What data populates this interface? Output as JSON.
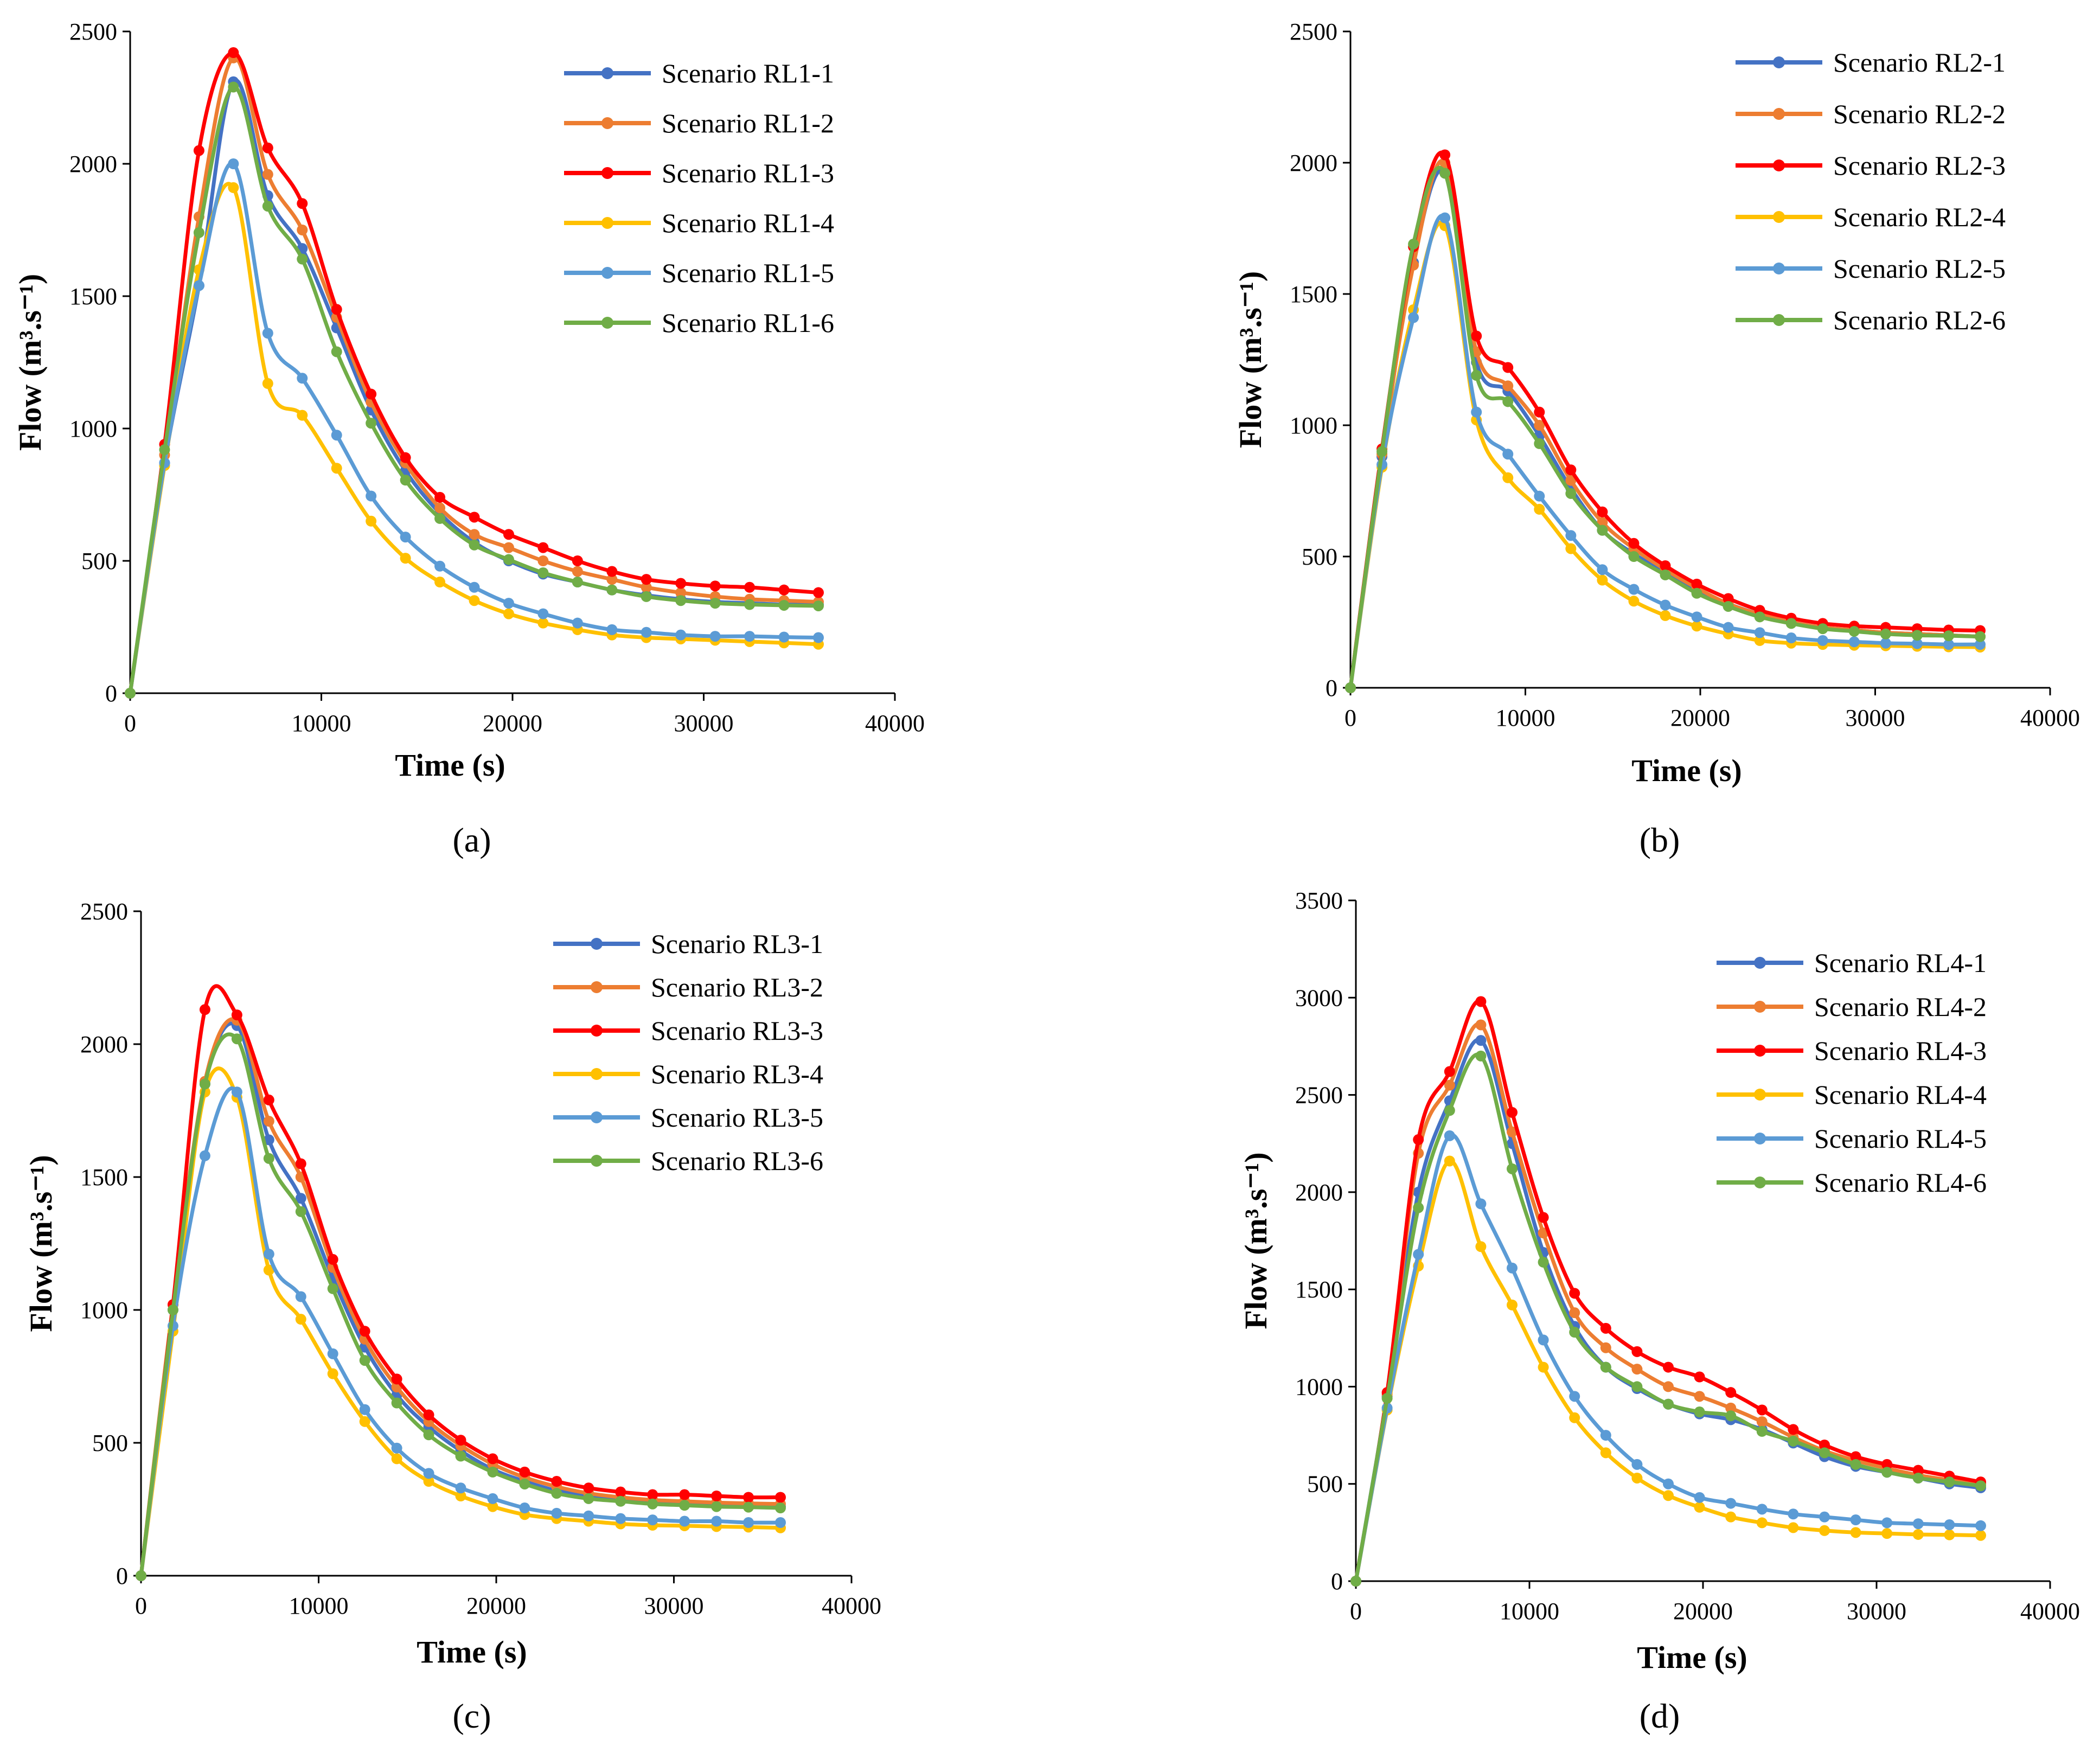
{
  "chart_data": [
    {
      "type": "line",
      "panel_label": "(a)",
      "xlabel": "Time (s)",
      "ylabel": "Flow (m³.s⁻¹)",
      "xlim": [
        0,
        40000
      ],
      "ylim": [
        0,
        2500
      ],
      "xticks": [
        0,
        10000,
        20000,
        30000,
        40000
      ],
      "yticks": [
        0,
        500,
        1000,
        1500,
        2000,
        2500
      ],
      "legend_position": "top-right",
      "x": [
        0,
        1800,
        3600,
        5400,
        7200,
        9000,
        10800,
        12600,
        14400,
        16200,
        18000,
        19800,
        21600,
        23400,
        25200,
        27000,
        28800,
        30600,
        32400,
        34200,
        36000
      ],
      "series": [
        {
          "name": "Scenario RL1-1",
          "color": "#4472C4",
          "values": [
            0,
            870,
            1540,
            2310,
            1880,
            1680,
            1380,
            1070,
            840,
            680,
            570,
            500,
            450,
            420,
            390,
            370,
            355,
            345,
            340,
            335,
            335
          ]
        },
        {
          "name": "Scenario RL1-2",
          "color": "#ED7D31",
          "values": [
            0,
            900,
            1800,
            2400,
            1960,
            1750,
            1420,
            1100,
            870,
            700,
            600,
            550,
            500,
            460,
            430,
            400,
            380,
            365,
            355,
            350,
            345
          ]
        },
        {
          "name": "Scenario RL1-3",
          "color": "#FF0000",
          "values": [
            0,
            940,
            2050,
            2420,
            2060,
            1850,
            1450,
            1130,
            890,
            740,
            665,
            600,
            550,
            500,
            460,
            430,
            415,
            405,
            400,
            390,
            380
          ]
        },
        {
          "name": "Scenario RL1-4",
          "color": "#FFC000",
          "values": [
            0,
            860,
            1600,
            1910,
            1170,
            1050,
            850,
            650,
            510,
            420,
            350,
            300,
            265,
            240,
            220,
            210,
            205,
            200,
            195,
            190,
            185
          ]
        },
        {
          "name": "Scenario RL1-5",
          "color": "#5B9BD5",
          "values": [
            0,
            870,
            1540,
            2000,
            1360,
            1190,
            975,
            745,
            590,
            480,
            400,
            340,
            300,
            265,
            240,
            230,
            220,
            215,
            215,
            212,
            210
          ]
        },
        {
          "name": "Scenario RL1-6",
          "color": "#70AD47",
          "values": [
            0,
            920,
            1740,
            2290,
            1840,
            1640,
            1290,
            1020,
            805,
            660,
            560,
            505,
            455,
            420,
            390,
            365,
            350,
            340,
            335,
            332,
            330
          ]
        }
      ]
    },
    {
      "type": "line",
      "panel_label": "(b)",
      "xlabel": "Time (s)",
      "ylabel": "Flow (m³.s⁻¹)",
      "xlim": [
        0,
        40000
      ],
      "ylim": [
        0,
        2500
      ],
      "xticks": [
        0,
        10000,
        20000,
        30000,
        40000
      ],
      "yticks": [
        0,
        500,
        1000,
        1500,
        2000,
        2500
      ],
      "legend_position": "top-right",
      "x": [
        0,
        1800,
        3600,
        5400,
        7200,
        9000,
        10800,
        12600,
        14400,
        16200,
        18000,
        19800,
        21600,
        23400,
        25200,
        27000,
        28800,
        30600,
        32400,
        34200,
        36000
      ],
      "series": [
        {
          "name": "Scenario RL2-1",
          "color": "#4472C4",
          "values": [
            0,
            880,
            1620,
            1960,
            1240,
            1130,
            960,
            760,
            600,
            510,
            440,
            370,
            320,
            280,
            250,
            230,
            220,
            210,
            205,
            200,
            195
          ]
        },
        {
          "name": "Scenario RL2-2",
          "color": "#ED7D31",
          "values": [
            0,
            890,
            1610,
            2000,
            1280,
            1150,
            1000,
            790,
            630,
            530,
            450,
            380,
            320,
            280,
            250,
            230,
            220,
            210,
            205,
            200,
            195
          ]
        },
        {
          "name": "Scenario RL2-3",
          "color": "#FF0000",
          "values": [
            0,
            910,
            1680,
            2030,
            1340,
            1220,
            1050,
            830,
            670,
            550,
            465,
            395,
            340,
            295,
            265,
            245,
            235,
            230,
            225,
            220,
            218
          ]
        },
        {
          "name": "Scenario RL2-4",
          "color": "#FFC000",
          "values": [
            0,
            840,
            1440,
            1760,
            1020,
            800,
            680,
            530,
            410,
            330,
            275,
            235,
            205,
            180,
            170,
            165,
            162,
            160,
            158,
            156,
            155
          ]
        },
        {
          "name": "Scenario RL2-5",
          "color": "#5B9BD5",
          "values": [
            0,
            850,
            1410,
            1790,
            1050,
            890,
            730,
            580,
            450,
            375,
            315,
            270,
            230,
            210,
            190,
            180,
            175,
            170,
            168,
            165,
            165
          ]
        },
        {
          "name": "Scenario RL2-6",
          "color": "#70AD47",
          "values": [
            0,
            900,
            1690,
            1960,
            1190,
            1090,
            930,
            740,
            600,
            500,
            430,
            360,
            310,
            270,
            245,
            225,
            215,
            205,
            200,
            198,
            195
          ]
        }
      ]
    },
    {
      "type": "line",
      "panel_label": "(c)",
      "xlabel": "Time (s)",
      "ylabel": "Flow (m³.s⁻¹)",
      "xlim": [
        0,
        40000
      ],
      "ylim": [
        0,
        2500
      ],
      "xticks": [
        0,
        10000,
        20000,
        30000,
        40000
      ],
      "yticks": [
        0,
        500,
        1000,
        1500,
        2000,
        2500
      ],
      "legend_position": "top-right",
      "x": [
        0,
        1800,
        3600,
        5400,
        7200,
        9000,
        10800,
        12600,
        14400,
        16200,
        18000,
        19800,
        21600,
        23400,
        25200,
        27000,
        28800,
        30600,
        32400,
        34200,
        36000
      ],
      "series": [
        {
          "name": "Scenario RL3-1",
          "color": "#4472C4",
          "values": [
            0,
            1000,
            1850,
            2070,
            1640,
            1420,
            1120,
            860,
            680,
            560,
            470,
            400,
            355,
            320,
            300,
            285,
            275,
            270,
            265,
            262,
            260
          ]
        },
        {
          "name": "Scenario RL3-2",
          "color": "#ED7D31",
          "values": [
            0,
            1020,
            1860,
            2090,
            1710,
            1500,
            1160,
            890,
            710,
            580,
            490,
            420,
            370,
            335,
            310,
            295,
            285,
            280,
            275,
            272,
            270
          ]
        },
        {
          "name": "Scenario RL3-3",
          "color": "#FF0000",
          "values": [
            0,
            1020,
            2130,
            2110,
            1790,
            1550,
            1190,
            920,
            740,
            605,
            510,
            440,
            390,
            355,
            330,
            315,
            305,
            305,
            300,
            295,
            295
          ]
        },
        {
          "name": "Scenario RL3-4",
          "color": "#FFC000",
          "values": [
            0,
            920,
            1820,
            1800,
            1150,
            965,
            760,
            580,
            440,
            355,
            300,
            260,
            230,
            215,
            205,
            195,
            190,
            188,
            185,
            183,
            180
          ]
        },
        {
          "name": "Scenario RL3-5",
          "color": "#5B9BD5",
          "values": [
            0,
            940,
            1580,
            1820,
            1210,
            1050,
            835,
            625,
            480,
            385,
            330,
            290,
            255,
            235,
            225,
            215,
            210,
            205,
            205,
            200,
            200
          ]
        },
        {
          "name": "Scenario RL3-6",
          "color": "#70AD47",
          "values": [
            0,
            1000,
            1850,
            2020,
            1570,
            1370,
            1080,
            810,
            650,
            530,
            450,
            390,
            345,
            310,
            290,
            280,
            270,
            265,
            260,
            258,
            255
          ]
        }
      ]
    },
    {
      "type": "line",
      "panel_label": "(d)",
      "xlabel": "Time (s)",
      "ylabel": "Flow (m³.s⁻¹)",
      "xlim": [
        0,
        40000
      ],
      "ylim": [
        0,
        3500
      ],
      "xticks": [
        0,
        10000,
        20000,
        30000,
        40000
      ],
      "yticks": [
        0,
        500,
        1000,
        1500,
        2000,
        2500,
        3000,
        3500
      ],
      "legend_position": "top-right",
      "x": [
        0,
        1800,
        3600,
        5400,
        7200,
        9000,
        10800,
        12600,
        14400,
        16200,
        18000,
        19800,
        21600,
        23400,
        25200,
        27000,
        28800,
        30600,
        32400,
        34200,
        36000
      ],
      "series": [
        {
          "name": "Scenario RL4-1",
          "color": "#4472C4",
          "values": [
            0,
            950,
            2000,
            2470,
            2780,
            2250,
            1690,
            1310,
            1100,
            990,
            910,
            860,
            830,
            780,
            710,
            640,
            590,
            560,
            530,
            500,
            480
          ]
        },
        {
          "name": "Scenario RL4-2",
          "color": "#ED7D31",
          "values": [
            0,
            960,
            2200,
            2550,
            2860,
            2310,
            1790,
            1380,
            1200,
            1090,
            1000,
            950,
            890,
            820,
            740,
            670,
            620,
            580,
            545,
            520,
            500
          ]
        },
        {
          "name": "Scenario RL4-3",
          "color": "#FF0000",
          "values": [
            0,
            970,
            2270,
            2620,
            2980,
            2410,
            1870,
            1480,
            1300,
            1180,
            1100,
            1050,
            970,
            880,
            780,
            700,
            640,
            600,
            570,
            540,
            510
          ]
        },
        {
          "name": "Scenario RL4-4",
          "color": "#FFC000",
          "values": [
            0,
            880,
            1620,
            2160,
            1720,
            1420,
            1100,
            840,
            660,
            530,
            440,
            380,
            330,
            300,
            275,
            260,
            250,
            245,
            240,
            238,
            235
          ]
        },
        {
          "name": "Scenario RL4-5",
          "color": "#5B9BD5",
          "values": [
            0,
            890,
            1680,
            2290,
            1940,
            1610,
            1240,
            950,
            750,
            600,
            500,
            430,
            400,
            370,
            345,
            330,
            315,
            300,
            295,
            290,
            285
          ]
        },
        {
          "name": "Scenario RL4-6",
          "color": "#70AD47",
          "values": [
            0,
            940,
            1920,
            2420,
            2700,
            2120,
            1640,
            1280,
            1100,
            1000,
            910,
            870,
            850,
            770,
            720,
            660,
            600,
            560,
            530,
            510,
            490
          ]
        }
      ]
    }
  ]
}
